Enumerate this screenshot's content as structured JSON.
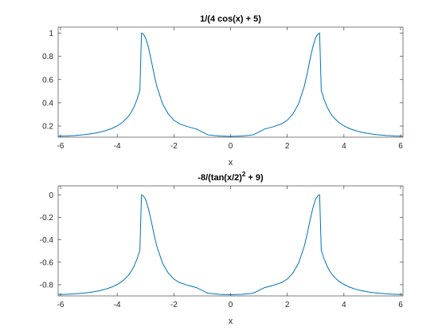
{
  "colors": {
    "line": "#0072BD"
  },
  "chart_data": [
    {
      "type": "line",
      "title": "1/(4 cos(x) + 5)",
      "xlabel": "x",
      "ylabel": "",
      "xlim": [
        -6.0832,
        6.0832
      ],
      "ylim": [
        0.104,
        1.052
      ],
      "grid": false,
      "xticks": [
        -6,
        -4,
        -2,
        0,
        2,
        4,
        6
      ],
      "xtick_labels": [
        "-6",
        "-4",
        "-2",
        "0",
        "2",
        "4",
        "6"
      ],
      "yticks": [
        0.2,
        0.4,
        0.6,
        0.8,
        1
      ],
      "ytick_labels": [
        "0.2",
        "0.4",
        "0.6",
        "0.8",
        "1"
      ],
      "series": [
        {
          "x": [
            -6.0832,
            -5.8,
            -5.5,
            -5.2,
            -5.0,
            -4.8,
            -4.6,
            -4.4,
            -4.2,
            -4.0,
            -3.8,
            -3.6,
            -3.5,
            -3.4,
            -3.3,
            -3.2,
            -3.1416,
            -3.08,
            -3.0,
            -2.9,
            -2.8,
            -2.7,
            -2.6,
            -2.4,
            -2.2,
            -2.0,
            -1.8,
            -1.5,
            -1.2,
            -0.8,
            -0.4,
            0,
            0.4,
            0.8,
            1.2,
            1.5,
            1.8,
            2.0,
            2.2,
            2.4,
            2.6,
            2.7,
            2.8,
            2.9,
            3.0,
            3.08,
            3.1416,
            3.2,
            3.3,
            3.4,
            3.5,
            3.6,
            3.8,
            4.0,
            4.2,
            4.4,
            4.6,
            4.8,
            5.0,
            5.2,
            5.5,
            5.8,
            6.0832
          ],
          "y": [
            0.1125,
            0.1146,
            0.1184,
            0.1245,
            0.1303,
            0.138,
            0.1479,
            0.1607,
            0.1779,
            0.2011,
            0.2345,
            0.2841,
            0.3205,
            0.3679,
            0.4293,
            0.5062,
            0.9999,
            0.9924,
            0.9615,
            0.879,
            0.7686,
            0.6477,
            0.541,
            0.3919,
            0.3047,
            0.2498,
            0.2188,
            0.1938,
            0.174,
            0.1242,
            0.1143,
            0.1111,
            0.1143,
            0.1242,
            0.174,
            0.1938,
            0.2188,
            0.2498,
            0.3047,
            0.3919,
            0.541,
            0.6477,
            0.7686,
            0.879,
            0.9615,
            0.9924,
            0.9999,
            0.5062,
            0.4293,
            0.3679,
            0.3205,
            0.2841,
            0.2345,
            0.2011,
            0.1779,
            0.1607,
            0.1479,
            0.138,
            0.1303,
            0.1245,
            0.1184,
            0.1146,
            0.1125
          ]
        }
      ]
    },
    {
      "type": "line",
      "title": "-8/(tan(x/2)",
      "title_sup": "2",
      "title_tail": " + 9)",
      "xlabel": "x",
      "ylabel": "",
      "xlim": [
        -6.0832,
        6.0832
      ],
      "ylim": [
        -0.9,
        0.08
      ],
      "grid": false,
      "xticks": [
        -6,
        -4,
        -2,
        0,
        2,
        4,
        6
      ],
      "xtick_labels": [
        "-6",
        "-4",
        "-2",
        "0",
        "2",
        "4",
        "6"
      ],
      "yticks": [
        -0.8,
        -0.6,
        -0.4,
        -0.2,
        0
      ],
      "ytick_labels": [
        "-0.8",
        "-0.6",
        "-0.4",
        "-0.2",
        "0"
      ],
      "series": [
        {
          "x": [
            -6.0832,
            -5.8,
            -5.5,
            -5.2,
            -5.0,
            -4.8,
            -4.6,
            -4.4,
            -4.2,
            -4.0,
            -3.8,
            -3.6,
            -3.5,
            -3.4,
            -3.3,
            -3.2,
            -3.1416,
            -3.08,
            -3.0,
            -2.9,
            -2.8,
            -2.7,
            -2.6,
            -2.4,
            -2.2,
            -2.0,
            -1.8,
            -1.5,
            -1.2,
            -0.8,
            -0.4,
            0,
            0.4,
            0.8,
            1.2,
            1.5,
            1.8,
            2.0,
            2.2,
            2.4,
            2.6,
            2.7,
            2.8,
            2.9,
            3.0,
            3.08,
            3.1416,
            3.2,
            3.3,
            3.4,
            3.5,
            3.6,
            3.8,
            4.0,
            4.2,
            4.4,
            4.6,
            4.8,
            5.0,
            5.2,
            5.5,
            5.8,
            6.0832
          ],
          "y": [
            -0.8875,
            -0.8854,
            -0.8816,
            -0.8755,
            -0.8697,
            -0.862,
            -0.8521,
            -0.8393,
            -0.8221,
            -0.7989,
            -0.7655,
            -0.7159,
            -0.6795,
            -0.6321,
            -0.5707,
            -0.4938,
            -0.0001,
            -0.0076,
            -0.0385,
            -0.121,
            -0.2314,
            -0.3523,
            -0.459,
            -0.6081,
            -0.6953,
            -0.7502,
            -0.7812,
            -0.8062,
            -0.826,
            -0.8758,
            -0.8857,
            -0.8889,
            -0.8857,
            -0.8758,
            -0.826,
            -0.8062,
            -0.7812,
            -0.7502,
            -0.6953,
            -0.6081,
            -0.459,
            -0.3523,
            -0.2314,
            -0.121,
            -0.0385,
            -0.0076,
            -0.0001,
            -0.4938,
            -0.5707,
            -0.6321,
            -0.6795,
            -0.7159,
            -0.7655,
            -0.7989,
            -0.8221,
            -0.8393,
            -0.8521,
            -0.862,
            -0.8697,
            -0.8755,
            -0.8816,
            -0.8854,
            -0.8875
          ]
        }
      ]
    }
  ]
}
